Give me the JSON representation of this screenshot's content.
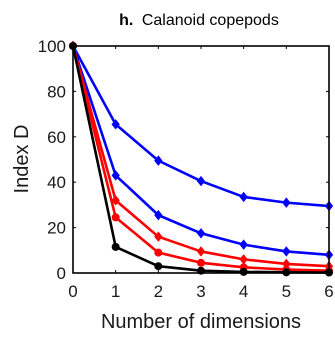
{
  "chart_data": {
    "type": "line",
    "title": {
      "panel": "h.",
      "text": "Calanoid copepods"
    },
    "xlabel": "Number of dimensions",
    "ylabel": "Index D",
    "xlim": [
      0,
      6
    ],
    "ylim": [
      0,
      100
    ],
    "xticks": [
      0,
      1,
      2,
      3,
      4,
      5,
      6
    ],
    "yticks": [
      0,
      20,
      40,
      60,
      80,
      100
    ],
    "grid": false,
    "x": [
      0,
      1,
      2,
      3,
      4,
      5,
      6
    ],
    "series": [
      {
        "color": "#0000ff",
        "marker": "diamond",
        "values": [
          100,
          65.5,
          49.5,
          40.5,
          33.5,
          31,
          29.5
        ]
      },
      {
        "color": "#0000ff",
        "marker": "diamond",
        "values": [
          100,
          43,
          25.5,
          17.5,
          12.5,
          9.5,
          8
        ]
      },
      {
        "color": "#ff0000",
        "marker": "diamond",
        "values": [
          100,
          32,
          16,
          9.5,
          6,
          4,
          3
        ]
      },
      {
        "color": "#ff0000",
        "marker": "circle",
        "values": [
          100,
          24.5,
          9,
          4.5,
          2.5,
          1.5,
          1
        ]
      },
      {
        "color": "#000000",
        "marker": "circle",
        "values": [
          100,
          11.5,
          3,
          1,
          0.5,
          0.3,
          0.2
        ]
      }
    ]
  }
}
